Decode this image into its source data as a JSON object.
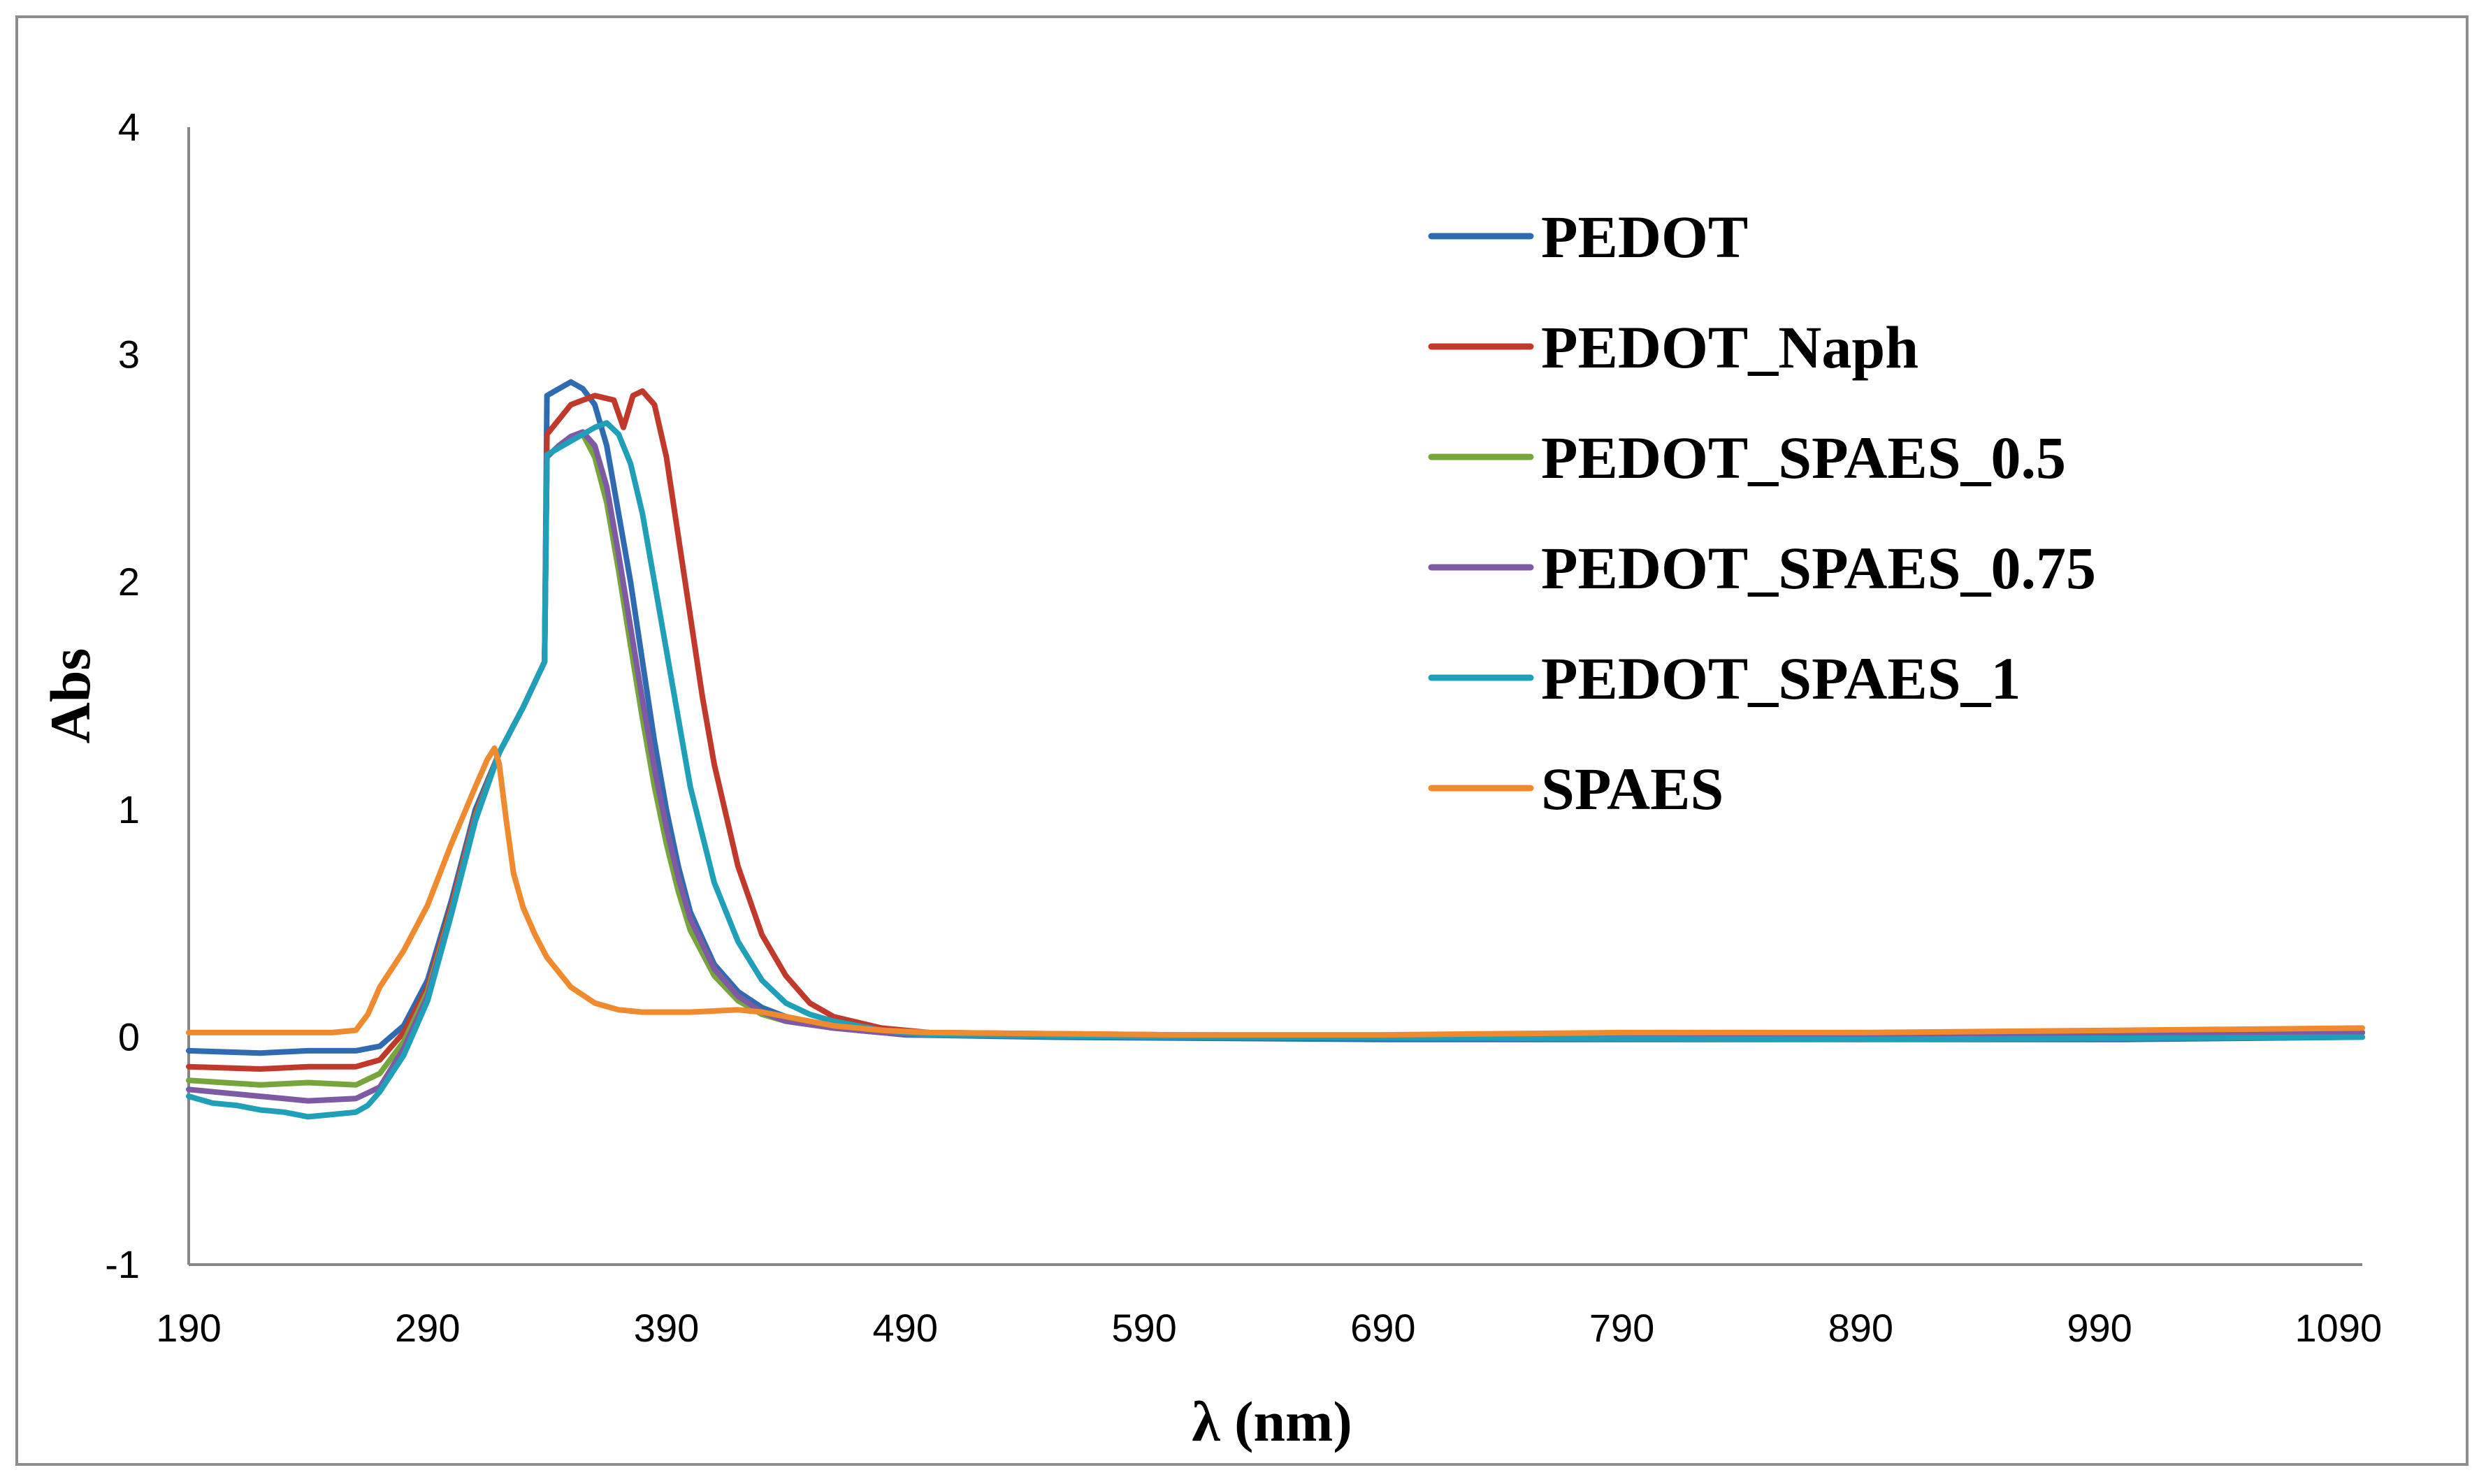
{
  "chart_data": {
    "type": "line",
    "title": "",
    "xlabel": "λ (nm)",
    "ylabel": "Abs",
    "xlim": [
      190,
      1100
    ],
    "ylim": [
      -1,
      4
    ],
    "xticks": [
      190,
      290,
      390,
      490,
      590,
      690,
      790,
      890,
      990,
      1090
    ],
    "yticks": [
      -1,
      0,
      1,
      2,
      3,
      4
    ],
    "grid": false,
    "legend_position": "top-right",
    "series": [
      {
        "name": "PEDOT",
        "color": "#2e6bb0",
        "points": [
          [
            190,
            -0.06
          ],
          [
            220,
            -0.07
          ],
          [
            240,
            -0.06
          ],
          [
            260,
            -0.06
          ],
          [
            270,
            -0.04
          ],
          [
            280,
            0.05
          ],
          [
            290,
            0.25
          ],
          [
            300,
            0.6
          ],
          [
            310,
            1.0
          ],
          [
            320,
            1.25
          ],
          [
            330,
            1.45
          ],
          [
            339,
            1.65
          ],
          [
            340,
            2.82
          ],
          [
            345,
            2.85
          ],
          [
            350,
            2.88
          ],
          [
            355,
            2.85
          ],
          [
            360,
            2.78
          ],
          [
            365,
            2.6
          ],
          [
            370,
            2.3
          ],
          [
            375,
            2.0
          ],
          [
            380,
            1.65
          ],
          [
            385,
            1.3
          ],
          [
            390,
            1.0
          ],
          [
            395,
            0.75
          ],
          [
            400,
            0.55
          ],
          [
            410,
            0.32
          ],
          [
            420,
            0.2
          ],
          [
            430,
            0.13
          ],
          [
            440,
            0.09
          ],
          [
            450,
            0.06
          ],
          [
            470,
            0.03
          ],
          [
            490,
            0.01
          ],
          [
            550,
            0.0
          ],
          [
            690,
            -0.01
          ],
          [
            890,
            -0.01
          ],
          [
            1000,
            -0.01
          ],
          [
            1100,
            0.0
          ]
        ]
      },
      {
        "name": "PEDOT_Naph",
        "color": "#c0392b",
        "points": [
          [
            190,
            -0.13
          ],
          [
            220,
            -0.14
          ],
          [
            240,
            -0.13
          ],
          [
            260,
            -0.13
          ],
          [
            270,
            -0.1
          ],
          [
            280,
            0.02
          ],
          [
            290,
            0.22
          ],
          [
            300,
            0.58
          ],
          [
            310,
            0.98
          ],
          [
            320,
            1.25
          ],
          [
            330,
            1.45
          ],
          [
            339,
            1.65
          ],
          [
            340,
            2.65
          ],
          [
            350,
            2.78
          ],
          [
            360,
            2.82
          ],
          [
            368,
            2.8
          ],
          [
            372,
            2.68
          ],
          [
            376,
            2.82
          ],
          [
            380,
            2.84
          ],
          [
            385,
            2.78
          ],
          [
            390,
            2.55
          ],
          [
            395,
            2.2
          ],
          [
            400,
            1.85
          ],
          [
            405,
            1.5
          ],
          [
            410,
            1.2
          ],
          [
            420,
            0.75
          ],
          [
            430,
            0.45
          ],
          [
            440,
            0.27
          ],
          [
            450,
            0.15
          ],
          [
            460,
            0.09
          ],
          [
            480,
            0.04
          ],
          [
            500,
            0.02
          ],
          [
            600,
            0.01
          ],
          [
            790,
            0.0
          ],
          [
            1000,
            0.01
          ],
          [
            1100,
            0.02
          ]
        ]
      },
      {
        "name": "PEDOT_SPAES_0.5",
        "color": "#77a43c",
        "points": [
          [
            190,
            -0.19
          ],
          [
            220,
            -0.21
          ],
          [
            240,
            -0.2
          ],
          [
            260,
            -0.21
          ],
          [
            270,
            -0.16
          ],
          [
            280,
            -0.02
          ],
          [
            290,
            0.2
          ],
          [
            300,
            0.56
          ],
          [
            310,
            0.97
          ],
          [
            320,
            1.25
          ],
          [
            330,
            1.45
          ],
          [
            339,
            1.65
          ],
          [
            340,
            2.55
          ],
          [
            345,
            2.6
          ],
          [
            350,
            2.64
          ],
          [
            355,
            2.65
          ],
          [
            360,
            2.55
          ],
          [
            365,
            2.35
          ],
          [
            370,
            2.05
          ],
          [
            375,
            1.72
          ],
          [
            380,
            1.4
          ],
          [
            385,
            1.1
          ],
          [
            390,
            0.85
          ],
          [
            395,
            0.64
          ],
          [
            400,
            0.47
          ],
          [
            410,
            0.27
          ],
          [
            420,
            0.16
          ],
          [
            430,
            0.1
          ],
          [
            440,
            0.07
          ],
          [
            460,
            0.04
          ],
          [
            480,
            0.02
          ],
          [
            500,
            0.01
          ],
          [
            690,
            0.0
          ],
          [
            1000,
            0.01
          ],
          [
            1100,
            0.02
          ]
        ]
      },
      {
        "name": "PEDOT_SPAES_0.75",
        "color": "#7e5aa4",
        "points": [
          [
            190,
            -0.23
          ],
          [
            220,
            -0.26
          ],
          [
            240,
            -0.28
          ],
          [
            260,
            -0.27
          ],
          [
            270,
            -0.22
          ],
          [
            280,
            -0.05
          ],
          [
            290,
            0.18
          ],
          [
            300,
            0.55
          ],
          [
            310,
            0.96
          ],
          [
            320,
            1.25
          ],
          [
            330,
            1.45
          ],
          [
            339,
            1.65
          ],
          [
            340,
            2.55
          ],
          [
            345,
            2.6
          ],
          [
            350,
            2.64
          ],
          [
            355,
            2.66
          ],
          [
            360,
            2.6
          ],
          [
            365,
            2.42
          ],
          [
            370,
            2.12
          ],
          [
            375,
            1.8
          ],
          [
            380,
            1.48
          ],
          [
            385,
            1.18
          ],
          [
            390,
            0.92
          ],
          [
            395,
            0.7
          ],
          [
            400,
            0.52
          ],
          [
            410,
            0.3
          ],
          [
            420,
            0.18
          ],
          [
            430,
            0.11
          ],
          [
            440,
            0.07
          ],
          [
            460,
            0.04
          ],
          [
            480,
            0.02
          ],
          [
            500,
            0.01
          ],
          [
            690,
            0.0
          ],
          [
            1000,
            0.01
          ],
          [
            1100,
            0.02
          ]
        ]
      },
      {
        "name": "PEDOT_SPAES_1",
        "color": "#1fa0b8",
        "points": [
          [
            190,
            -0.26
          ],
          [
            200,
            -0.29
          ],
          [
            210,
            -0.3
          ],
          [
            220,
            -0.32
          ],
          [
            230,
            -0.33
          ],
          [
            240,
            -0.35
          ],
          [
            250,
            -0.34
          ],
          [
            260,
            -0.33
          ],
          [
            265,
            -0.3
          ],
          [
            270,
            -0.24
          ],
          [
            280,
            -0.08
          ],
          [
            290,
            0.16
          ],
          [
            300,
            0.54
          ],
          [
            310,
            0.95
          ],
          [
            320,
            1.25
          ],
          [
            330,
            1.45
          ],
          [
            339,
            1.65
          ],
          [
            340,
            2.56
          ],
          [
            350,
            2.62
          ],
          [
            360,
            2.68
          ],
          [
            365,
            2.7
          ],
          [
            370,
            2.65
          ],
          [
            375,
            2.52
          ],
          [
            380,
            2.3
          ],
          [
            385,
            2.0
          ],
          [
            390,
            1.7
          ],
          [
            395,
            1.4
          ],
          [
            400,
            1.1
          ],
          [
            410,
            0.68
          ],
          [
            420,
            0.42
          ],
          [
            430,
            0.25
          ],
          [
            440,
            0.15
          ],
          [
            450,
            0.1
          ],
          [
            460,
            0.07
          ],
          [
            480,
            0.03
          ],
          [
            500,
            0.01
          ],
          [
            600,
            0.0
          ],
          [
            890,
            -0.01
          ],
          [
            1100,
            0.0
          ]
        ]
      },
      {
        "name": "SPAES",
        "color": "#f08a2e",
        "points": [
          [
            190,
            0.02
          ],
          [
            220,
            0.02
          ],
          [
            250,
            0.02
          ],
          [
            260,
            0.03
          ],
          [
            265,
            0.1
          ],
          [
            270,
            0.22
          ],
          [
            280,
            0.38
          ],
          [
            290,
            0.58
          ],
          [
            300,
            0.85
          ],
          [
            310,
            1.1
          ],
          [
            315,
            1.22
          ],
          [
            318,
            1.27
          ],
          [
            320,
            1.2
          ],
          [
            323,
            0.95
          ],
          [
            326,
            0.72
          ],
          [
            330,
            0.57
          ],
          [
            335,
            0.45
          ],
          [
            340,
            0.35
          ],
          [
            350,
            0.22
          ],
          [
            360,
            0.15
          ],
          [
            370,
            0.12
          ],
          [
            380,
            0.11
          ],
          [
            400,
            0.11
          ],
          [
            420,
            0.12
          ],
          [
            430,
            0.11
          ],
          [
            440,
            0.09
          ],
          [
            450,
            0.07
          ],
          [
            460,
            0.05
          ],
          [
            480,
            0.03
          ],
          [
            500,
            0.02
          ],
          [
            600,
            0.01
          ],
          [
            690,
            0.01
          ],
          [
            790,
            0.02
          ],
          [
            890,
            0.02
          ],
          [
            1000,
            0.03
          ],
          [
            1100,
            0.04
          ]
        ]
      }
    ]
  }
}
